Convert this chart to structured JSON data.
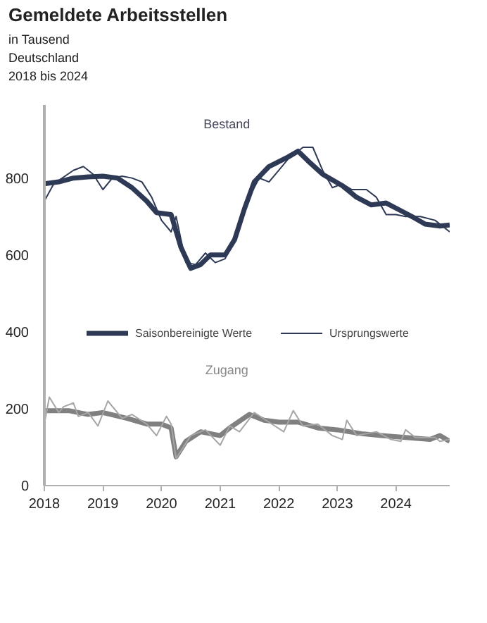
{
  "chart_data": {
    "type": "line",
    "title": "Gemeldete Arbeitsstellen",
    "subtitle": "in Tausend\nDeutschland\n2018 bis 2024",
    "xlim": [
      "2018-01",
      "2024-12"
    ],
    "xticks": [
      "2018",
      "2019",
      "2020",
      "2021",
      "2022",
      "2023",
      "2024"
    ],
    "ylim": [
      0,
      990
    ],
    "yticks": [
      0,
      200,
      400,
      600,
      800
    ],
    "grid": false,
    "legend": "bottom",
    "line_style": "solid",
    "marker": "none",
    "annotations": [
      "Bestand",
      "Zugang"
    ],
    "series": [
      {
        "name": "Saisonbereinigte Werte",
        "color": "#2e3a55",
        "x": [
          "2018-01",
          "2018-04",
          "2018-07",
          "2018-10",
          "2019-01",
          "2019-04",
          "2019-07",
          "2019-10",
          "2019-12",
          "2020-03",
          "2020-05",
          "2020-07",
          "2020-09",
          "2020-11",
          "2021-02",
          "2021-04",
          "2021-06",
          "2021-08",
          "2021-11",
          "2022-03",
          "2022-05",
          "2022-07",
          "2022-10",
          "2023-02",
          "2023-05",
          "2023-08",
          "2023-11",
          "2024-02",
          "2024-05",
          "2024-07",
          "2024-10",
          "2024-12"
        ],
        "values": [
          785,
          790,
          800,
          803,
          805,
          800,
          775,
          740,
          710,
          705,
          620,
          565,
          575,
          600,
          600,
          640,
          720,
          790,
          830,
          855,
          870,
          845,
          810,
          780,
          750,
          730,
          735,
          715,
          695,
          680,
          675,
          678
        ]
      },
      {
        "name": "Ursprungswerte",
        "color": "#2e3a55",
        "x": [
          "2018-01",
          "2018-03",
          "2018-07",
          "2018-09",
          "2018-11",
          "2019-01",
          "2019-03",
          "2019-05",
          "2019-07",
          "2019-09",
          "2019-11",
          "2020-01",
          "2020-03",
          "2020-04",
          "2020-06",
          "2020-08",
          "2020-10",
          "2020-12",
          "2021-02",
          "2021-04",
          "2021-07",
          "2021-09",
          "2021-11",
          "2022-01",
          "2022-03",
          "2022-06",
          "2022-08",
          "2022-10",
          "2022-12",
          "2023-02",
          "2023-04",
          "2023-07",
          "2023-09",
          "2023-11",
          "2024-01",
          "2024-03",
          "2024-06",
          "2024-09",
          "2024-12"
        ],
        "values": [
          740,
          785,
          820,
          830,
          810,
          770,
          800,
          805,
          800,
          790,
          750,
          690,
          660,
          700,
          580,
          575,
          605,
          580,
          590,
          650,
          750,
          800,
          790,
          820,
          850,
          880,
          880,
          820,
          775,
          785,
          770,
          770,
          750,
          705,
          705,
          700,
          700,
          690,
          660
        ]
      },
      {
        "color": "#808080",
        "x": [
          "2018-01",
          "2018-06",
          "2018-10",
          "2019-01",
          "2019-06",
          "2019-10",
          "2020-01",
          "2020-03",
          "2020-04",
          "2020-06",
          "2020-09",
          "2021-01",
          "2021-03",
          "2021-07",
          "2021-10",
          "2022-01",
          "2022-05",
          "2022-09",
          "2023-01",
          "2023-06",
          "2023-10",
          "2024-03",
          "2024-08",
          "2024-10",
          "2024-12"
        ],
        "values": [
          195,
          195,
          185,
          190,
          175,
          160,
          160,
          150,
          75,
          115,
          140,
          130,
          150,
          185,
          170,
          165,
          165,
          150,
          145,
          135,
          130,
          125,
          120,
          130,
          115
        ]
      },
      {
        "color": "#a6a6a6",
        "x": [
          "2018-01",
          "2018-02",
          "2018-04",
          "2018-05",
          "2018-07",
          "2018-08",
          "2018-10",
          "2018-12",
          "2019-02",
          "2019-05",
          "2019-07",
          "2019-10",
          "2019-12",
          "2020-02",
          "2020-03",
          "2020-04",
          "2020-07",
          "2020-10",
          "2021-01",
          "2021-03",
          "2021-05",
          "2021-08",
          "2021-11",
          "2022-02",
          "2022-04",
          "2022-06",
          "2022-09",
          "2022-12",
          "2023-02",
          "2023-03",
          "2023-05",
          "2023-09",
          "2023-12",
          "2024-02",
          "2024-03",
          "2024-05",
          "2024-09",
          "2024-10",
          "2024-12"
        ],
        "values": [
          160,
          230,
          190,
          205,
          215,
          180,
          190,
          155,
          220,
          175,
          185,
          160,
          130,
          180,
          160,
          70,
          130,
          145,
          105,
          155,
          140,
          190,
          165,
          140,
          195,
          155,
          160,
          130,
          120,
          170,
          130,
          140,
          120,
          115,
          145,
          125,
          125,
          115,
          120
        ]
      }
    ]
  }
}
